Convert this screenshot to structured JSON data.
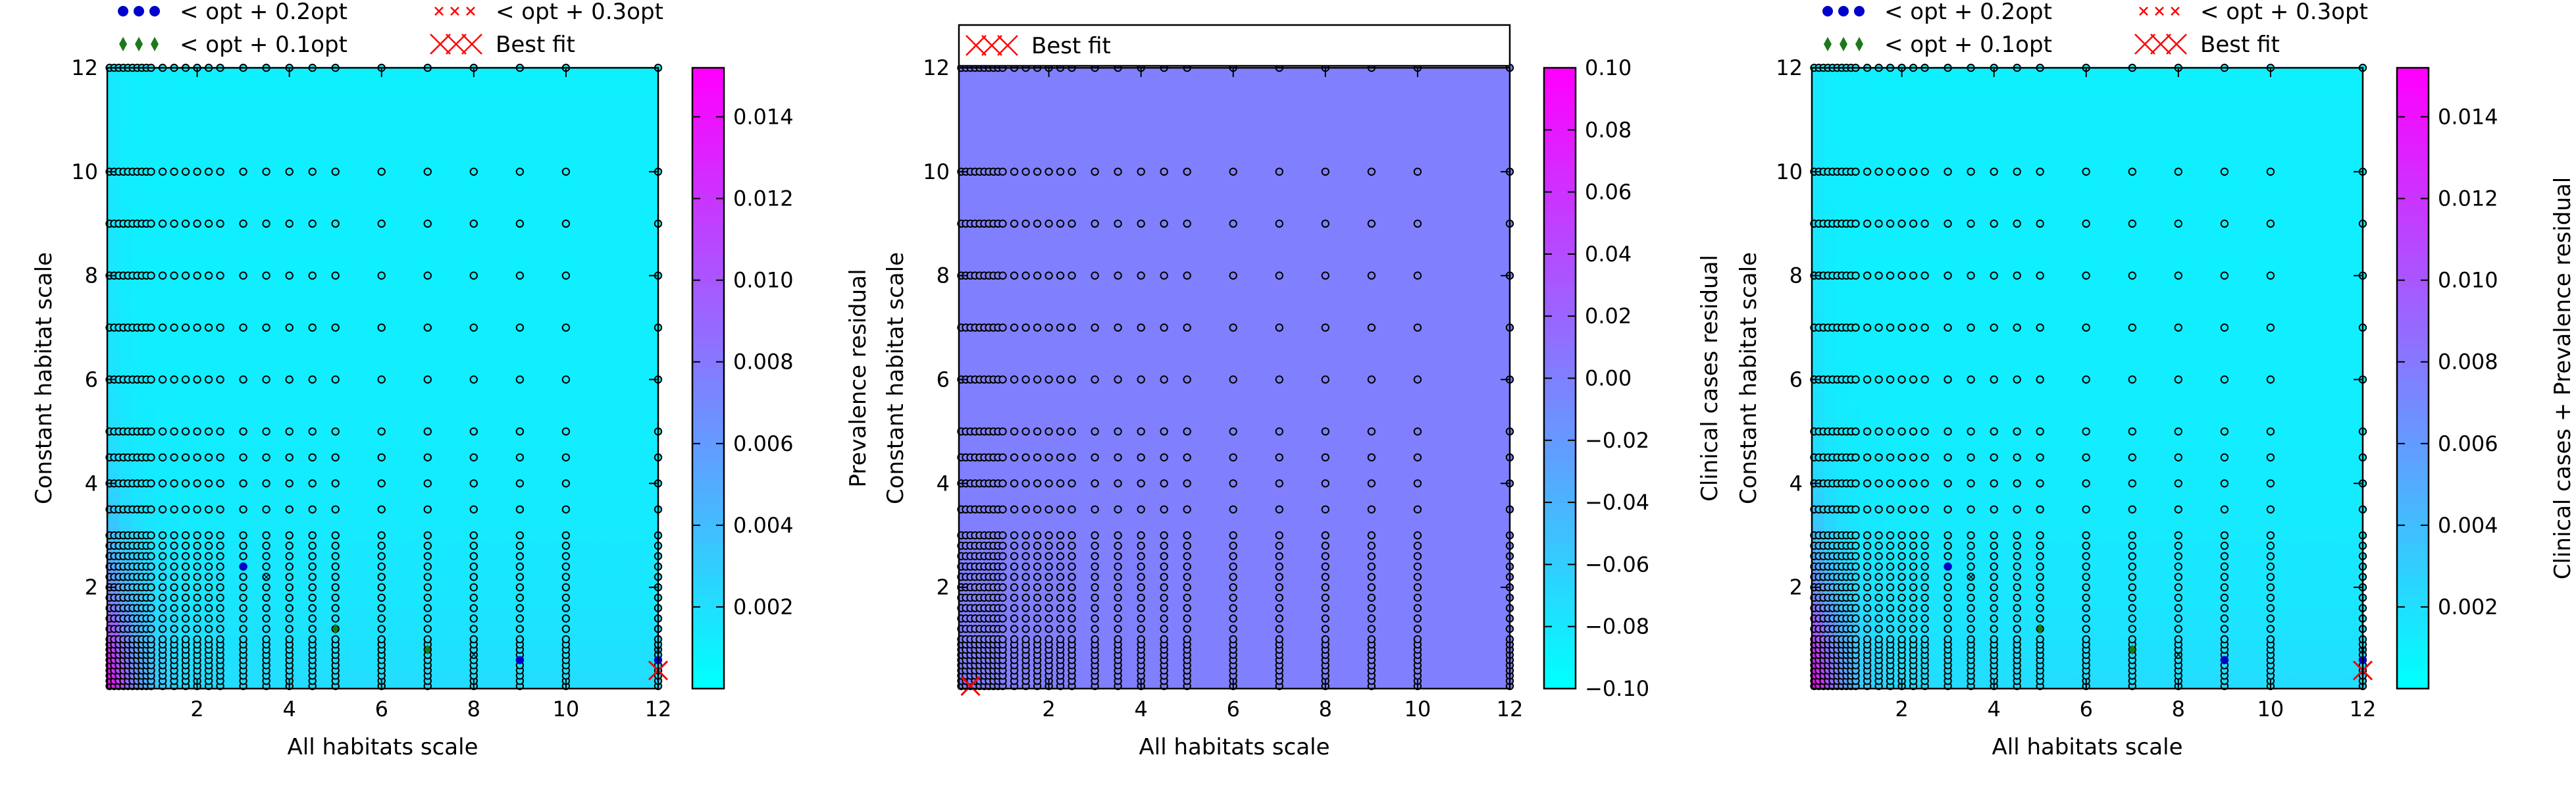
{
  "legend_labels": {
    "opt02": "< opt + 0.2opt",
    "opt03": "< opt + 0.3opt",
    "opt01": "< opt + 0.1opt",
    "best": "Best fit"
  },
  "colors": {
    "colormap_low": "#00ffff",
    "colormap_high": "#ff00ff",
    "grid_marker_edge": "#000000",
    "marker_02": "#0000cc",
    "marker_01": "#1a7a1a",
    "marker_03": "#ff0000",
    "best_fit": "#ff0000"
  },
  "chart_data": [
    {
      "type": "heatmap",
      "xlabel": "All habitats scale",
      "ylabel": "Constant habitat scale",
      "colorbar_label": "Prevalence residual",
      "xlim": [
        0.05,
        12
      ],
      "ylim": [
        0.05,
        12
      ],
      "xticks": [
        "2",
        "4",
        "6",
        "8",
        "10",
        "12"
      ],
      "yticks": [
        "2",
        "4",
        "6",
        "8",
        "10",
        "12"
      ],
      "colorbar_range": [
        0.0,
        0.0152
      ],
      "colorbar_ticks": [
        "0.002",
        "0.004",
        "0.006",
        "0.008",
        "0.010",
        "0.012",
        "0.014"
      ],
      "legend": [
        "opt02",
        "opt03",
        "opt01",
        "best"
      ],
      "legend_position": "top",
      "field": "prevalence",
      "best_fit": {
        "x": 12,
        "y": 0.4
      },
      "within_02": [
        {
          "x": 3,
          "y": 2.4
        },
        {
          "x": 9,
          "y": 0.6
        },
        {
          "x": 12,
          "y": 0.6
        }
      ],
      "within_01": [
        {
          "x": 5,
          "y": 1.2
        },
        {
          "x": 7,
          "y": 0.8
        }
      ],
      "within_03": [
        {
          "x": 3.5,
          "y": 2.2
        },
        {
          "x": 8,
          "y": 0.7
        },
        {
          "x": 12,
          "y": 0.8
        }
      ]
    },
    {
      "type": "heatmap",
      "xlabel": "All habitats scale",
      "ylabel": "Constant habitat scale",
      "colorbar_label": "Clinical cases residual",
      "xlim": [
        0.05,
        12
      ],
      "ylim": [
        0.05,
        12
      ],
      "xticks": [
        "2",
        "4",
        "6",
        "8",
        "10",
        "12"
      ],
      "yticks": [
        "2",
        "4",
        "6",
        "8",
        "10",
        "12"
      ],
      "colorbar_range": [
        -0.1,
        0.1
      ],
      "colorbar_ticks": [
        "−0.10",
        "−0.08",
        "−0.06",
        "−0.04",
        "−0.02",
        "0.00",
        "0.02",
        "0.04",
        "0.06",
        "0.08",
        "0.10"
      ],
      "legend": [
        "best"
      ],
      "legend_position": "top",
      "field": "uniform",
      "best_fit": {
        "x": 0.3,
        "y": 0.1
      },
      "within_02": [],
      "within_01": [],
      "within_03": []
    },
    {
      "type": "heatmap",
      "xlabel": "All habitats scale",
      "ylabel": "Constant habitat scale",
      "colorbar_label": "Clinical cases + Prevalence residual",
      "xlim": [
        0.05,
        12
      ],
      "ylim": [
        0.05,
        12
      ],
      "xticks": [
        "2",
        "4",
        "6",
        "8",
        "10",
        "12"
      ],
      "yticks": [
        "2",
        "4",
        "6",
        "8",
        "10",
        "12"
      ],
      "colorbar_range": [
        0.0,
        0.0152
      ],
      "colorbar_ticks": [
        "0.002",
        "0.004",
        "0.006",
        "0.008",
        "0.010",
        "0.012",
        "0.014"
      ],
      "legend": [
        "opt02",
        "opt03",
        "opt01",
        "best"
      ],
      "legend_position": "top",
      "field": "prevalence",
      "best_fit": {
        "x": 12,
        "y": 0.4
      },
      "within_02": [
        {
          "x": 3,
          "y": 2.4
        },
        {
          "x": 9,
          "y": 0.6
        },
        {
          "x": 12,
          "y": 0.6
        }
      ],
      "within_01": [
        {
          "x": 5,
          "y": 1.2
        },
        {
          "x": 7,
          "y": 0.8
        }
      ],
      "within_03": [
        {
          "x": 3.5,
          "y": 2.2
        },
        {
          "x": 8,
          "y": 0.7
        },
        {
          "x": 12,
          "y": 0.8
        }
      ]
    }
  ]
}
